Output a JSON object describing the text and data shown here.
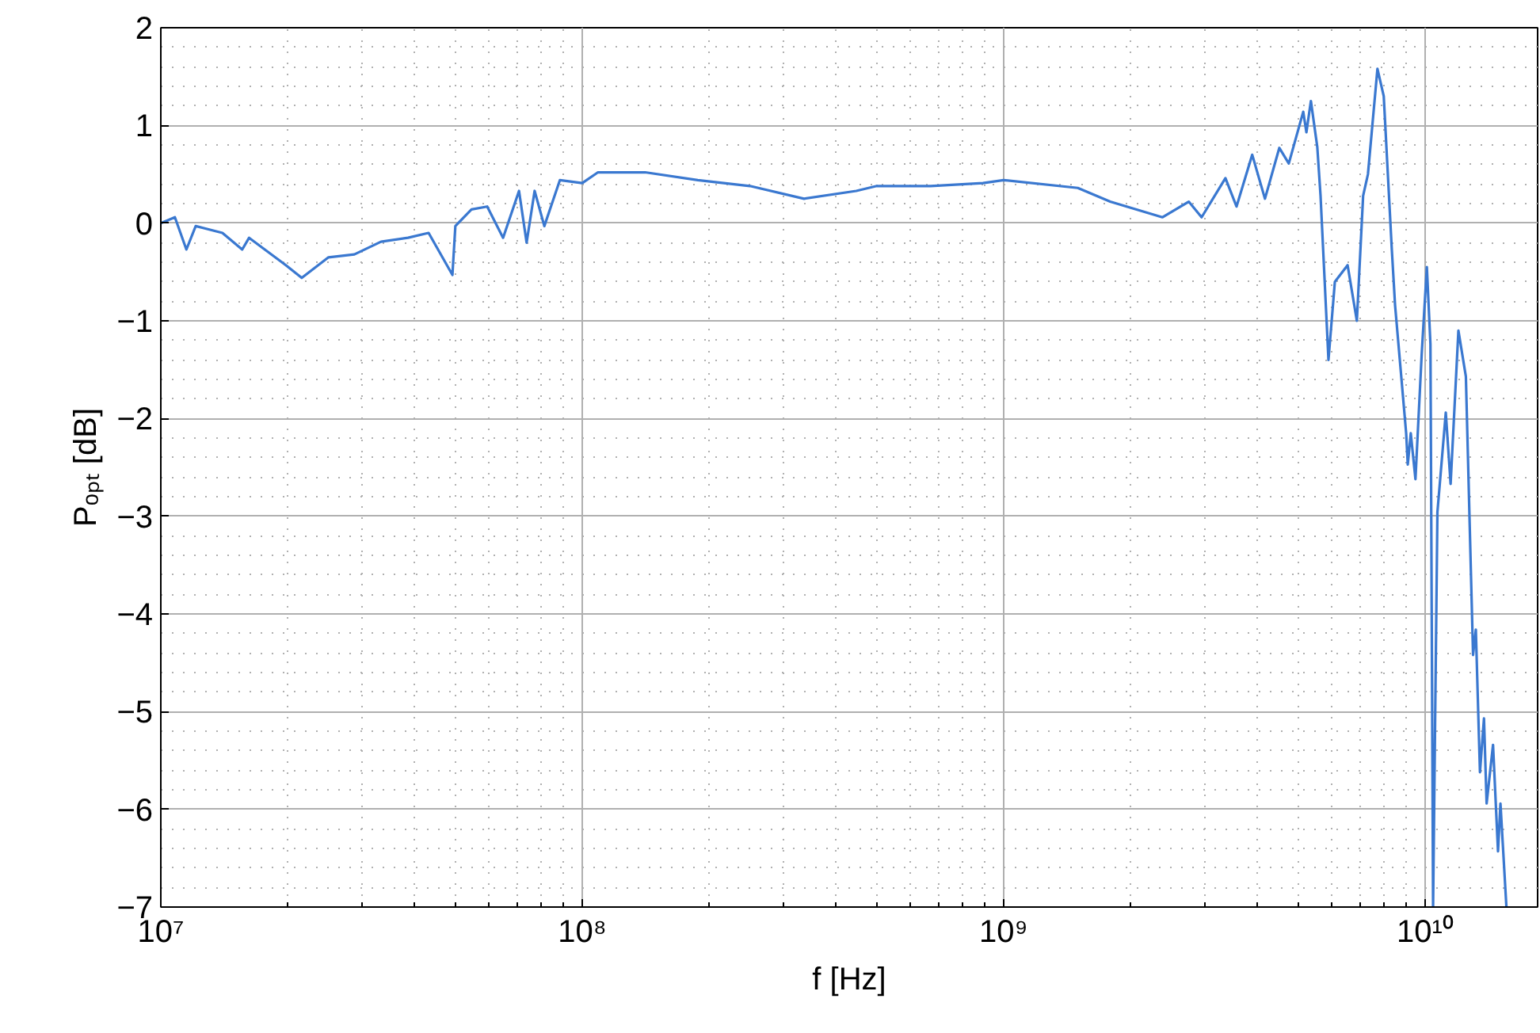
{
  "chart_data": {
    "type": "line",
    "xlabel": "f [Hz]",
    "ylabel": "Pₒₚₜ [dB]",
    "log": "x",
    "grid": true,
    "xlim": [
      10000000.0,
      18500000000.0
    ],
    "ylim": [
      -7,
      2
    ],
    "xticks": [
      {
        "value": 10000000.0,
        "label": "10⁷"
      },
      {
        "value": 100000000.0,
        "label": "10⁸"
      },
      {
        "value": 1000000000.0,
        "label": "10⁹"
      },
      {
        "value": 10000000000.0,
        "label": "10¹⁰"
      }
    ],
    "yticks": [
      {
        "value": -7,
        "label": "−7"
      },
      {
        "value": -6,
        "label": "−6"
      },
      {
        "value": -5,
        "label": "−5"
      },
      {
        "value": -4,
        "label": "−4"
      },
      {
        "value": -3,
        "label": "−3"
      },
      {
        "value": -2,
        "label": "−2"
      },
      {
        "value": -1,
        "label": "−1"
      },
      0,
      1,
      2
    ],
    "series": [
      {
        "color": "#3a78d0",
        "x": [
          10000000.0,
          10800000.0,
          11500000.0,
          12100000.0,
          14000000.0,
          15600000.0,
          16200000.0,
          19800000.0,
          21600000.0,
          25000000.0,
          28800000.0,
          33300000.0,
          38600000.0,
          43200000.0,
          49200000.0,
          50000000.0,
          54600000.0,
          59500000.0,
          64900000.0,
          70800000.0,
          73800000.0,
          77100000.0,
          81300000.0,
          88500000.0,
          100000000.0,
          109000000.0,
          141000000.0,
          188000000.0,
          250000000.0,
          336000000.0,
          447000000.0,
          500000000.0,
          671000000.0,
          893000000.0,
          1000000000.0,
          1500000000.0,
          1790000000.0,
          2380000000.0,
          2750000000.0,
          2950000000.0,
          3360000000.0,
          3570000000.0,
          3890000000.0,
          4170000000.0,
          4510000000.0,
          4750000000.0,
          5140000000.0,
          5230000000.0,
          5360000000.0,
          5550000000.0,
          5650000000.0,
          5900000000.0,
          6110000000.0,
          6550000000.0,
          6890000000.0,
          7130000000.0,
          7320000000.0,
          7710000000.0,
          7980000000.0,
          8340000000.0,
          8490000000.0,
          9020000000.0,
          9100000000.0,
          9250000000.0,
          9490000000.0,
          9820000000.0,
          10100000000.0,
          10300000000.0,
          10450000000.0,
          10700000000.0,
          11200000000.0,
          11500000000.0,
          12000000000.0,
          12500000000.0,
          13000000000.0,
          13200000000.0,
          13500000000.0,
          13800000000.0,
          14000000000.0,
          14500000000.0,
          14900000000.0,
          15100000000.0,
          15600000000.0
        ],
        "values": [
          0.0,
          0.06,
          -0.27,
          -0.03,
          -0.1,
          -0.27,
          -0.15,
          -0.43,
          -0.56,
          -0.35,
          -0.32,
          -0.19,
          -0.15,
          -0.1,
          -0.53,
          -0.03,
          0.14,
          0.17,
          -0.15,
          0.33,
          -0.2,
          0.33,
          -0.03,
          0.44,
          0.41,
          0.52,
          0.52,
          0.44,
          0.38,
          0.25,
          0.33,
          0.38,
          0.38,
          0.41,
          0.44,
          0.36,
          0.22,
          0.06,
          0.22,
          0.06,
          0.46,
          0.17,
          0.7,
          0.25,
          0.77,
          0.61,
          1.14,
          0.93,
          1.25,
          0.78,
          0.28,
          -1.4,
          -0.6,
          -0.43,
          -1.0,
          0.28,
          0.5,
          1.58,
          1.3,
          -0.27,
          -0.84,
          -2.15,
          -2.47,
          -2.15,
          -2.62,
          -1.34,
          -0.45,
          -1.24,
          -7.0,
          -2.96,
          -1.94,
          -2.67,
          -1.1,
          -1.57,
          -4.42,
          -4.16,
          -5.62,
          -5.07,
          -5.94,
          -5.34,
          -6.43,
          -5.94,
          -7.0
        ]
      }
    ]
  }
}
